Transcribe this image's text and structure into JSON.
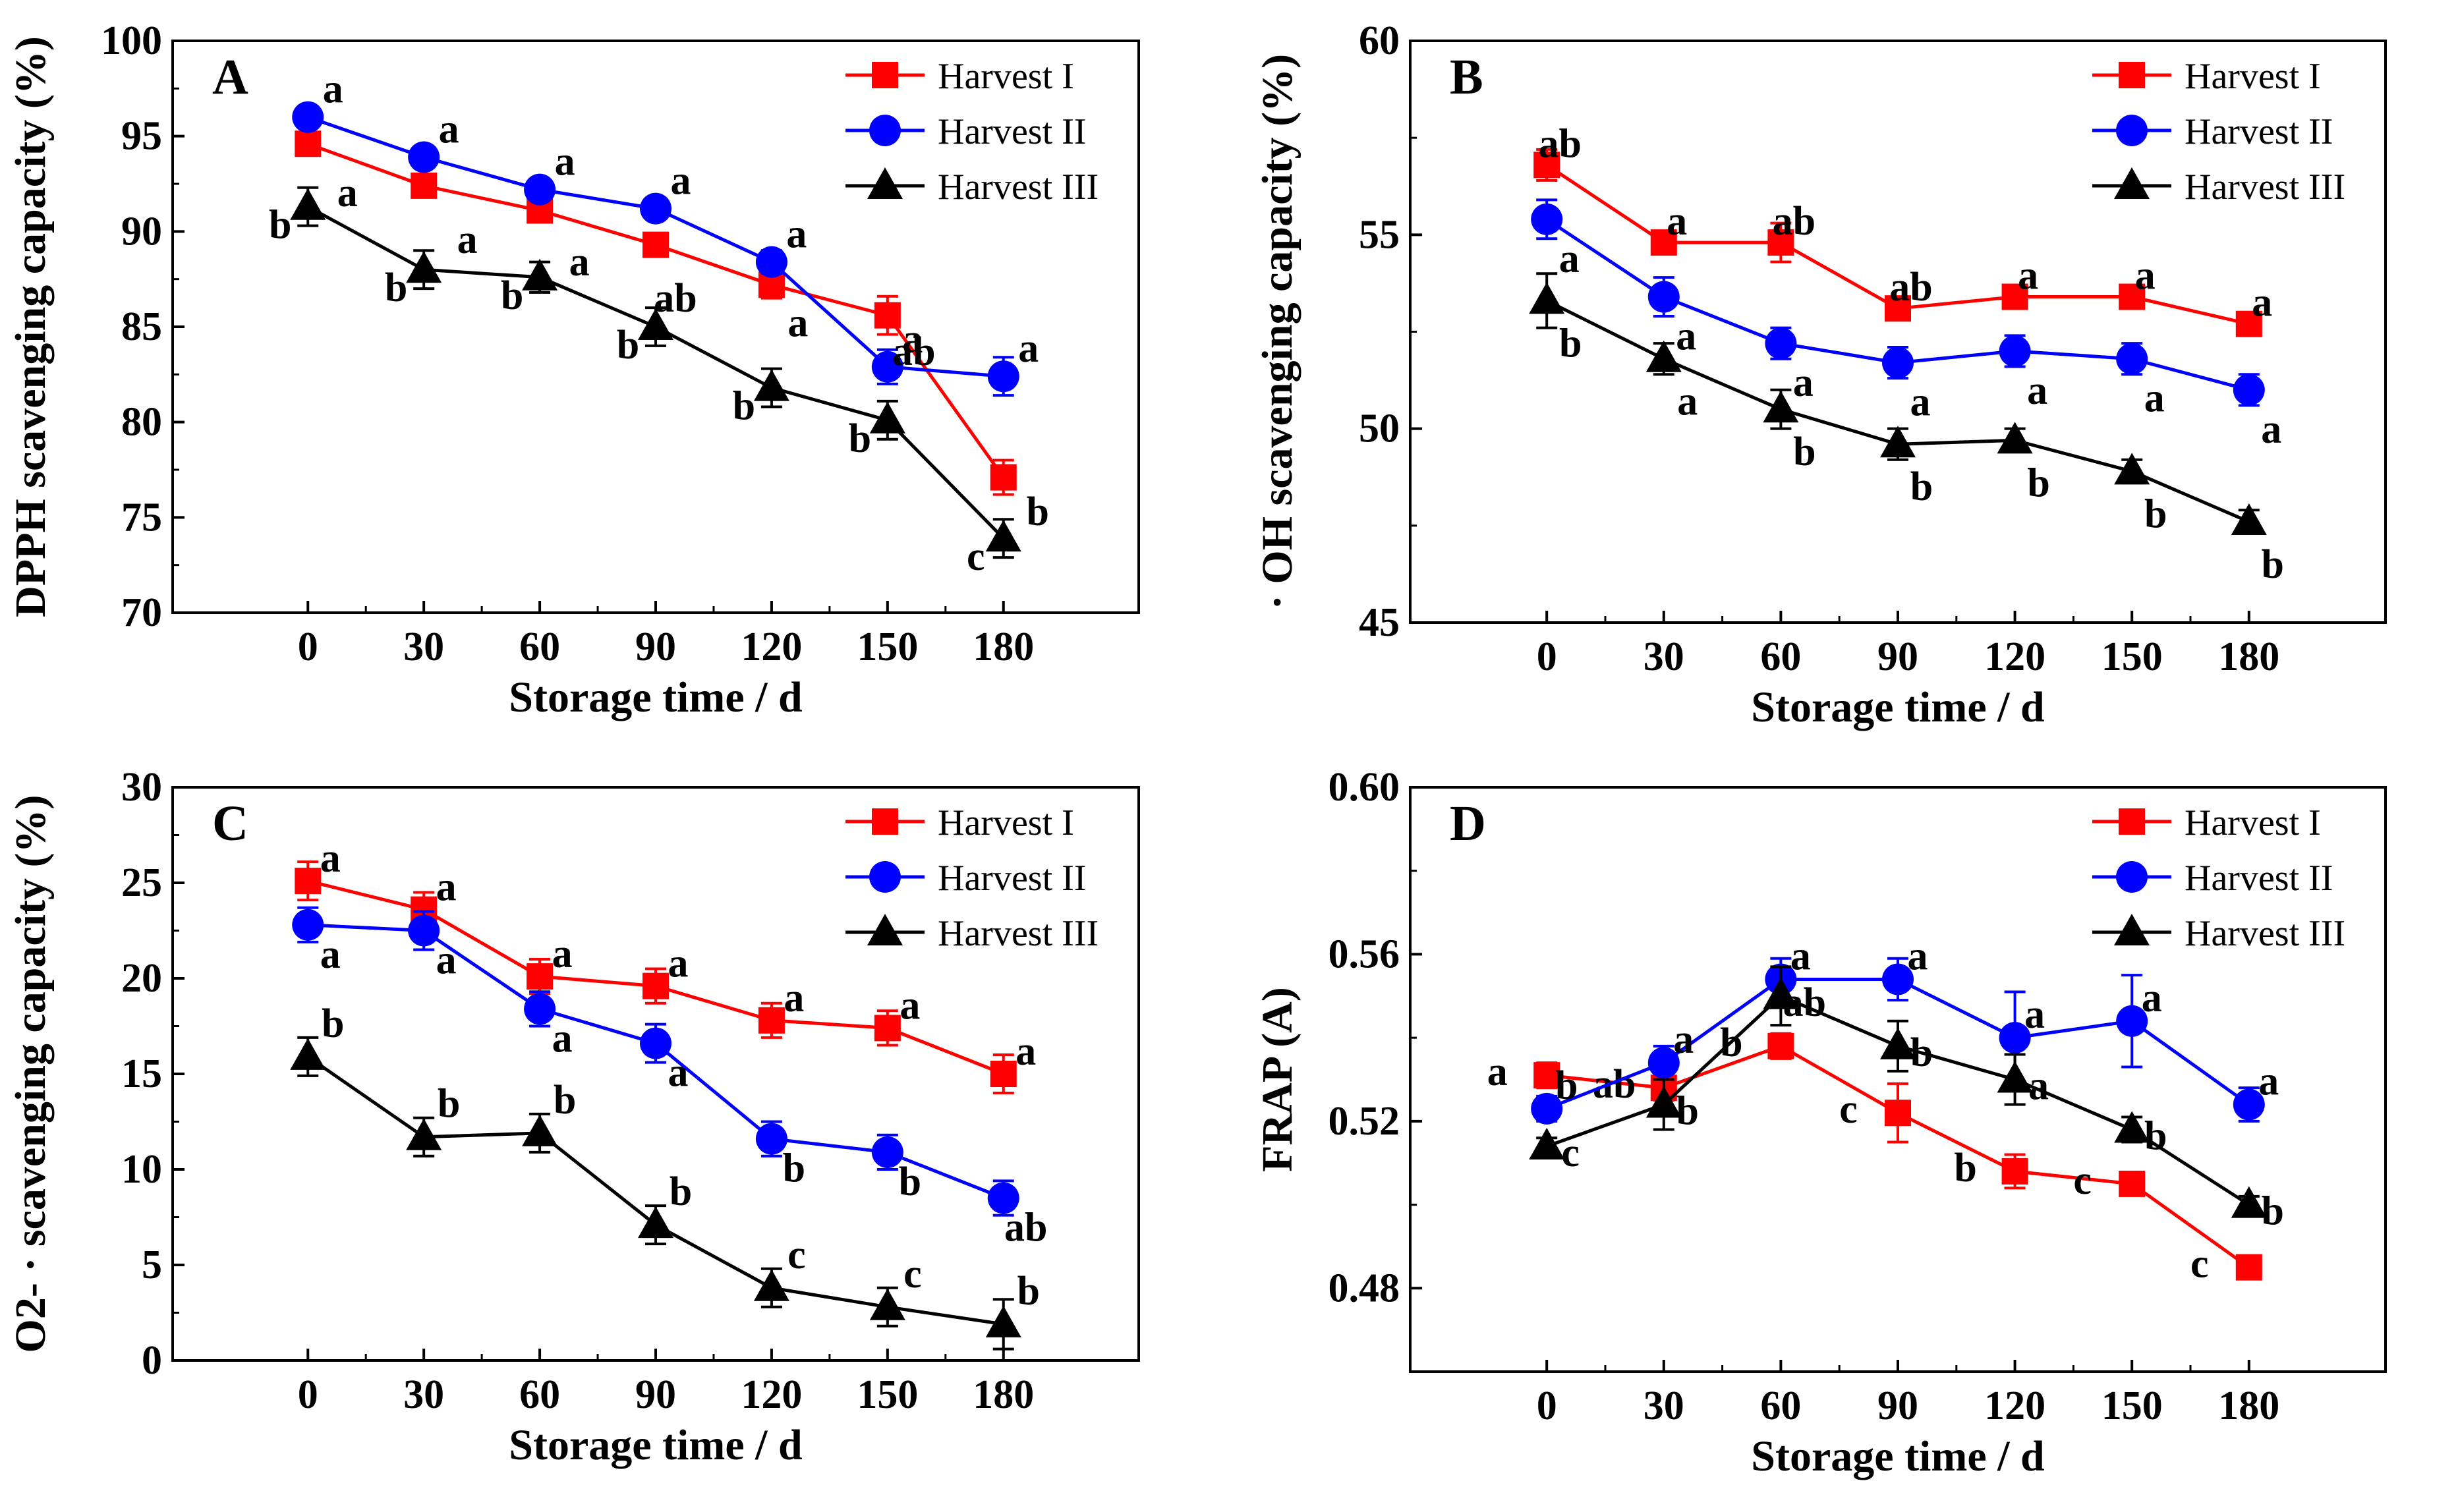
{
  "figure_title": "",
  "chart_data": [
    {
      "type": "line",
      "panel": "A",
      "title": "",
      "xlabel": "Storage time / d",
      "ylabel": "DPPH scavenging capacity  (%)",
      "x": [
        0,
        30,
        60,
        90,
        120,
        150,
        180
      ],
      "xlim": [
        -35,
        215
      ],
      "ylim": [
        70,
        100
      ],
      "yticks": [
        70,
        75,
        80,
        85,
        90,
        95,
        100
      ],
      "ytick_labels": [
        "70",
        "75",
        "80",
        "85",
        "90",
        "95",
        "100"
      ],
      "xtick_labels": [
        "0",
        "30",
        "60",
        "90",
        "120",
        "150",
        "180"
      ],
      "legend": "top-right",
      "series": [
        {
          "name": "Harvest I",
          "color": "#ff0000",
          "marker": "square",
          "values": [
            94.6,
            92.4,
            91.1,
            89.3,
            87.2,
            85.6,
            77.1
          ],
          "errors": [
            0.6,
            0.6,
            0.6,
            0.6,
            0.7,
            1.0,
            0.9
          ],
          "letters": [
            "",
            "",
            "",
            "",
            "",
            "",
            ""
          ]
        },
        {
          "name": "Harvest II",
          "color": "#0000ff",
          "marker": "circle",
          "values": [
            96.0,
            93.9,
            92.2,
            91.2,
            88.4,
            82.9,
            82.4
          ],
          "errors": [
            0.5,
            0.5,
            0.5,
            0.5,
            0.6,
            0.9,
            1.0
          ],
          "letters": [
            "a",
            "a",
            "a",
            "a",
            "a",
            "a",
            "a"
          ]
        },
        {
          "name": "Harvest III",
          "color": "#000000",
          "marker": "triangle",
          "values": [
            91.3,
            88.0,
            87.6,
            85.0,
            81.8,
            80.1,
            73.9
          ],
          "errors": [
            1.0,
            1.0,
            0.8,
            1.0,
            1.0,
            1.0,
            1.0
          ],
          "letters": [
            "b",
            "b",
            "b",
            "b",
            "b",
            "b",
            "c"
          ]
        }
      ],
      "extra_annotations": [
        {
          "text": "a",
          "x": 0,
          "y": 91.6,
          "dx": 30,
          "dy": 8
        },
        {
          "text": "a",
          "x": 30,
          "y": 88.6,
          "dx": 36,
          "dy": -8
        },
        {
          "text": "a",
          "x": 60,
          "y": 87.7,
          "dx": 30,
          "dy": 0
        },
        {
          "text": "ab",
          "x": 90,
          "y": 85.8,
          "dx": 0,
          "dy": 0
        },
        {
          "text": "a",
          "x": 120,
          "y": 84.5,
          "dx": 10,
          "dy": 0
        },
        {
          "text": "ab",
          "x": 150,
          "y": 83.0,
          "dx": 10,
          "dy": 0
        },
        {
          "text": "b",
          "x": 180,
          "y": 74.6,
          "dx": 22,
          "dy": 0
        }
      ]
    },
    {
      "type": "line",
      "panel": "B",
      "title": "",
      "xlabel": "Storage time / d",
      "ylabel": "· OH scavenging capacity  (%)",
      "x": [
        0,
        30,
        60,
        90,
        120,
        150,
        180
      ],
      "xlim": [
        -35,
        215
      ],
      "ylim": [
        45,
        60
      ],
      "yticks": [
        45,
        50,
        55,
        60
      ],
      "ytick_labels": [
        "45",
        "50",
        "55",
        "60"
      ],
      "xtick_labels": [
        "0",
        "30",
        "60",
        "90",
        "120",
        "150",
        "180"
      ],
      "legend": "top-right",
      "series": [
        {
          "name": "Harvest I",
          "color": "#ff0000",
          "marker": "square",
          "values": [
            56.8,
            54.8,
            54.8,
            53.1,
            53.4,
            53.4,
            52.7
          ],
          "errors": [
            0.4,
            0.3,
            0.5,
            0.3,
            0.3,
            0.3,
            0.3
          ],
          "letters": [
            "ab",
            "a",
            "ab",
            "ab",
            "a",
            "a",
            "a"
          ]
        },
        {
          "name": "Harvest II",
          "color": "#0000ff",
          "marker": "circle",
          "values": [
            55.4,
            53.4,
            52.2,
            51.7,
            52.0,
            51.8,
            51.0
          ],
          "errors": [
            0.5,
            0.5,
            0.4,
            0.4,
            0.4,
            0.4,
            0.4
          ],
          "letters": [
            "a",
            "a",
            "a",
            "a",
            "a",
            "a",
            "a"
          ]
        },
        {
          "name": "Harvest III",
          "color": "#000000",
          "marker": "triangle",
          "values": [
            53.3,
            51.8,
            50.5,
            49.6,
            49.7,
            48.9,
            47.6
          ],
          "errors": [
            0.7,
            0.4,
            0.5,
            0.4,
            0.3,
            0.3,
            0.3
          ],
          "letters": [
            "b",
            "a",
            "b",
            "b",
            "b",
            "b",
            "b"
          ]
        }
      ],
      "extra_annotations": []
    },
    {
      "type": "line",
      "panel": "C",
      "title": "",
      "xlabel": "Storage time / d",
      "ylabel": "O2- · scavenging capacity  (%)",
      "x": [
        0,
        30,
        60,
        90,
        120,
        150,
        180
      ],
      "xlim": [
        -35,
        215
      ],
      "ylim": [
        0,
        30
      ],
      "yticks": [
        0,
        5,
        10,
        15,
        20,
        25,
        30
      ],
      "ytick_labels": [
        "0",
        "5",
        "10",
        "15",
        "20",
        "25",
        "30"
      ],
      "xtick_labels": [
        "0",
        "30",
        "60",
        "90",
        "120",
        "150",
        "180"
      ],
      "legend": "top-right",
      "series": [
        {
          "name": "Harvest I",
          "color": "#ff0000",
          "marker": "square",
          "values": [
            25.1,
            23.6,
            20.1,
            19.6,
            17.8,
            17.4,
            15.0
          ],
          "errors": [
            1.0,
            0.9,
            0.9,
            0.9,
            0.9,
            0.9,
            1.0
          ],
          "letters": [
            "a",
            "a",
            "a",
            "a",
            "a",
            "a",
            "a"
          ]
        },
        {
          "name": "Harvest II",
          "color": "#0000ff",
          "marker": "circle",
          "values": [
            22.8,
            22.5,
            18.4,
            16.6,
            11.6,
            10.9,
            8.5
          ],
          "errors": [
            0.9,
            1.0,
            0.9,
            1.0,
            0.9,
            0.9,
            0.9
          ],
          "letters": [
            "a",
            "a",
            "a",
            "a",
            "b",
            "b",
            "ab"
          ]
        },
        {
          "name": "Harvest III",
          "color": "#000000",
          "marker": "triangle",
          "values": [
            15.9,
            11.7,
            11.9,
            7.1,
            3.8,
            2.8,
            1.9
          ],
          "errors": [
            1.0,
            1.0,
            1.0,
            1.0,
            1.0,
            1.0,
            1.3
          ],
          "letters": [
            "b",
            "b",
            "b",
            "b",
            "c",
            "c",
            "b"
          ]
        }
      ],
      "extra_annotations": []
    },
    {
      "type": "line",
      "panel": "D",
      "title": "",
      "xlabel": "Storage time / d",
      "ylabel": "FRAP (A)",
      "x": [
        0,
        30,
        60,
        90,
        120,
        150,
        180
      ],
      "xlim": [
        -35,
        215
      ],
      "ylim": [
        0.46,
        0.6
      ],
      "yticks": [
        0.48,
        0.52,
        0.56,
        0.6
      ],
      "ytick_labels": [
        "0.48",
        "0.52",
        "0.56",
        "0.60"
      ],
      "xtick_labels": [
        "0",
        "30",
        "60",
        "90",
        "120",
        "150",
        "180"
      ],
      "legend": "top-right",
      "series": [
        {
          "name": "Harvest I",
          "color": "#ff0000",
          "marker": "square",
          "values": [
            0.531,
            0.528,
            0.538,
            0.522,
            0.508,
            0.505,
            0.485
          ],
          "errors": [
            0.003,
            0.003,
            0.003,
            0.007,
            0.004,
            0.002,
            0.002
          ],
          "letters": [
            "a",
            "ab",
            "b",
            "c",
            "b",
            "c",
            "c"
          ]
        },
        {
          "name": "Harvest II",
          "color": "#0000ff",
          "marker": "circle",
          "values": [
            0.523,
            0.534,
            0.554,
            0.554,
            0.54,
            0.544,
            0.524
          ],
          "errors": [
            0.003,
            0.004,
            0.005,
            0.005,
            0.011,
            0.011,
            0.004
          ],
          "letters": [
            "b",
            "a",
            "a",
            "a",
            "a",
            "a",
            "a"
          ]
        },
        {
          "name": "Harvest III",
          "color": "#000000",
          "marker": "triangle",
          "values": [
            0.514,
            0.524,
            0.55,
            0.538,
            0.53,
            0.518,
            0.5
          ],
          "errors": [
            0.002,
            0.006,
            0.007,
            0.006,
            0.006,
            0.003,
            0.002
          ],
          "letters": [
            "c",
            "b",
            "ab",
            "b",
            "a",
            "b",
            "b"
          ]
        }
      ],
      "extra_annotations": []
    }
  ]
}
